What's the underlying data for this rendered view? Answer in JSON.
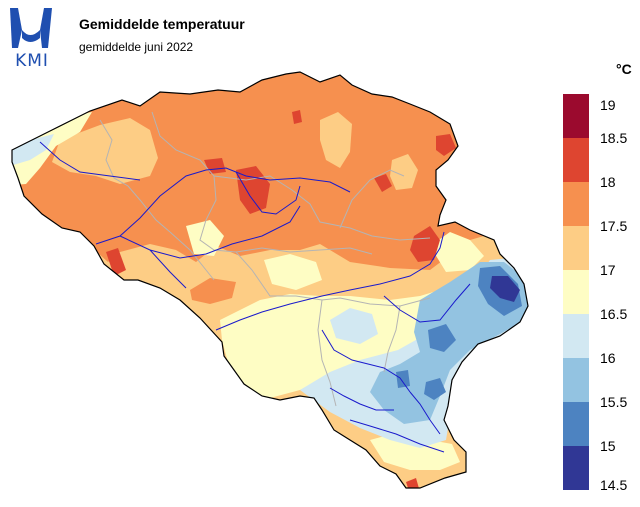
{
  "header": {
    "title": "Gemiddelde temperatuur",
    "subtitle": "gemiddelde juni 2022",
    "logo_text": "KMI"
  },
  "legend": {
    "unit": "°C",
    "ticks": [
      "19",
      "18.5",
      "18",
      "17.5",
      "17",
      "16.5",
      "16",
      "15.5",
      "15",
      "14.5"
    ],
    "colors": [
      "#9b0a2e",
      "#de4530",
      "#f6904f",
      "#fdcd85",
      "#fefdc4",
      "#d2e8f2",
      "#93c3e1",
      "#4d83c1",
      "#303795"
    ]
  },
  "map": {
    "region": "Belgium",
    "colors": {
      "t17_5_18": "#f6904f",
      "t17_17_5": "#fdcd85",
      "t16_5_17": "#fefdc4",
      "t16_16_5": "#d2e8f2",
      "t15_5_16": "#93c3e1",
      "t15_15_5": "#4d83c1",
      "t14_5_15": "#303795",
      "t18_18_5": "#de4530",
      "rivers": "#1a1acc",
      "borders": "#b4b4b4"
    }
  }
}
